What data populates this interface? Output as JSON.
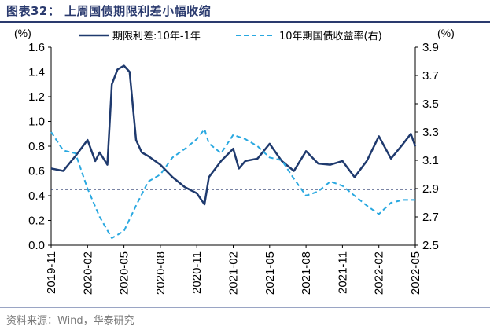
{
  "figure": {
    "title": "图表32： 上周国债期限利差小幅收缩",
    "source": "资料来源：Wind，华泰研究"
  },
  "chart_data": {
    "type": "line",
    "left_axis": {
      "unit": "(%)",
      "min": 0,
      "max": 1.6,
      "ticks": [
        "0.0",
        "0.2",
        "0.4",
        "0.6",
        "0.8",
        "1.0",
        "1.2",
        "1.4",
        "1.6"
      ]
    },
    "right_axis": {
      "unit": "(%)",
      "min": 2.5,
      "max": 3.9,
      "ticks": [
        "2.5",
        "2.7",
        "2.9",
        "3.1",
        "3.3",
        "3.5",
        "3.7",
        "3.9"
      ]
    },
    "x_axis": {
      "min": "2019-11",
      "max": "2022-05",
      "ticks": [
        "2019-11",
        "2020-02",
        "2020-05",
        "2020-08",
        "2020-11",
        "2021-02",
        "2021-05",
        "2021-08",
        "2021-11",
        "2022-02",
        "2022-05"
      ]
    },
    "reference_line": {
      "axis": "left",
      "value": 0.45,
      "style": "dashed",
      "color": "#2a3a6e"
    },
    "legend_placement": "top",
    "series": [
      {
        "name": "期限利差:10年-1年",
        "axis": "left",
        "color": "#1f3a6e",
        "style": "solid",
        "points": [
          [
            "2019-11",
            0.62
          ],
          [
            "2019-12",
            0.6
          ],
          [
            "2020-01",
            0.72
          ],
          [
            "2020-02",
            0.85
          ],
          [
            "2020-02-20",
            0.68
          ],
          [
            "2020-03",
            0.75
          ],
          [
            "2020-03-20",
            0.65
          ],
          [
            "2020-04",
            1.3
          ],
          [
            "2020-04-15",
            1.42
          ],
          [
            "2020-05",
            1.45
          ],
          [
            "2020-05-15",
            1.4
          ],
          [
            "2020-06",
            0.85
          ],
          [
            "2020-06-15",
            0.75
          ],
          [
            "2020-07",
            0.72
          ],
          [
            "2020-08",
            0.65
          ],
          [
            "2020-09",
            0.55
          ],
          [
            "2020-10",
            0.47
          ],
          [
            "2020-11",
            0.42
          ],
          [
            "2020-11-20",
            0.33
          ],
          [
            "2020-12",
            0.55
          ],
          [
            "2021-01",
            0.68
          ],
          [
            "2021-02",
            0.78
          ],
          [
            "2021-02-15",
            0.62
          ],
          [
            "2021-03",
            0.68
          ],
          [
            "2021-04",
            0.7
          ],
          [
            "2021-05",
            0.82
          ],
          [
            "2021-06",
            0.68
          ],
          [
            "2021-07",
            0.6
          ],
          [
            "2021-08",
            0.76
          ],
          [
            "2021-09",
            0.66
          ],
          [
            "2021-10",
            0.65
          ],
          [
            "2021-11",
            0.68
          ],
          [
            "2021-12",
            0.55
          ],
          [
            "2022-01",
            0.68
          ],
          [
            "2022-02",
            0.88
          ],
          [
            "2022-03",
            0.7
          ],
          [
            "2022-04",
            0.82
          ],
          [
            "2022-04-20",
            0.9
          ],
          [
            "2022-05",
            0.8
          ]
        ]
      },
      {
        "name": "10年期国债收益率(右)",
        "axis": "right",
        "color": "#29a8e0",
        "style": "dashed",
        "points": [
          [
            "2019-11",
            3.3
          ],
          [
            "2019-12",
            3.17
          ],
          [
            "2020-01",
            3.15
          ],
          [
            "2020-02",
            2.9
          ],
          [
            "2020-03",
            2.7
          ],
          [
            "2020-04",
            2.55
          ],
          [
            "2020-05",
            2.6
          ],
          [
            "2020-06",
            2.78
          ],
          [
            "2020-07",
            2.95
          ],
          [
            "2020-08",
            3.0
          ],
          [
            "2020-09",
            3.12
          ],
          [
            "2020-10",
            3.18
          ],
          [
            "2020-11",
            3.25
          ],
          [
            "2020-11-20",
            3.32
          ],
          [
            "2020-12",
            3.22
          ],
          [
            "2021-01",
            3.15
          ],
          [
            "2021-02",
            3.28
          ],
          [
            "2021-03",
            3.25
          ],
          [
            "2021-04",
            3.2
          ],
          [
            "2021-05",
            3.12
          ],
          [
            "2021-06",
            3.1
          ],
          [
            "2021-07",
            2.97
          ],
          [
            "2021-08",
            2.85
          ],
          [
            "2021-09",
            2.88
          ],
          [
            "2021-10",
            2.95
          ],
          [
            "2021-11",
            2.92
          ],
          [
            "2021-12",
            2.85
          ],
          [
            "2022-01",
            2.78
          ],
          [
            "2022-02",
            2.72
          ],
          [
            "2022-03",
            2.8
          ],
          [
            "2022-04",
            2.82
          ],
          [
            "2022-05",
            2.82
          ]
        ]
      }
    ]
  }
}
